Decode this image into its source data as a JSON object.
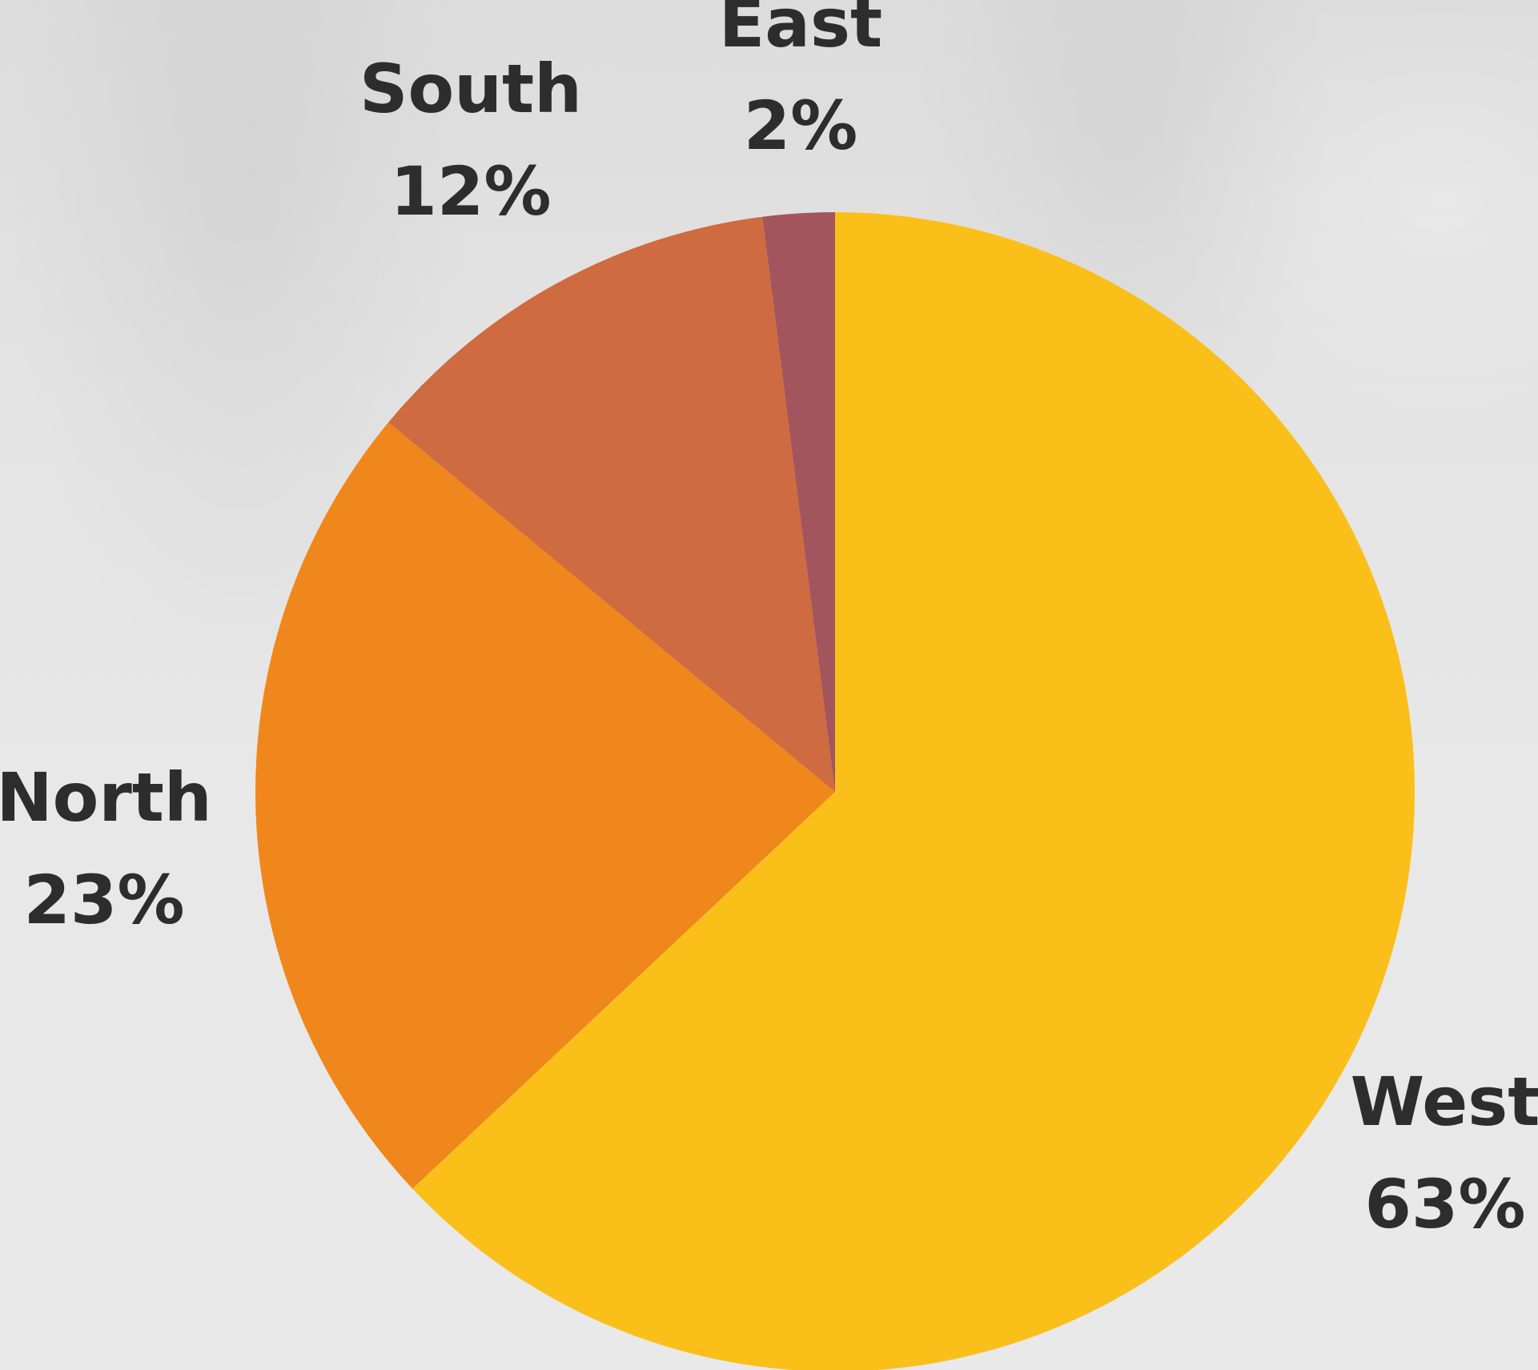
{
  "chart_data": {
    "type": "pie",
    "start_angle_deg": 0,
    "direction": "clockwise",
    "slices": [
      {
        "name": "West",
        "label": "West",
        "value": 63,
        "value_label": "63%",
        "color": "#fbbf19"
      },
      {
        "name": "North",
        "label": "North",
        "value": 23,
        "value_label": "23%",
        "color": "#f0871c"
      },
      {
        "name": "South",
        "label": "South",
        "value": 12,
        "value_label": "12%",
        "color": "#cf6b40"
      },
      {
        "name": "East",
        "label": "East",
        "value": 2,
        "value_label": "2%",
        "color": "#a3555d"
      }
    ]
  }
}
